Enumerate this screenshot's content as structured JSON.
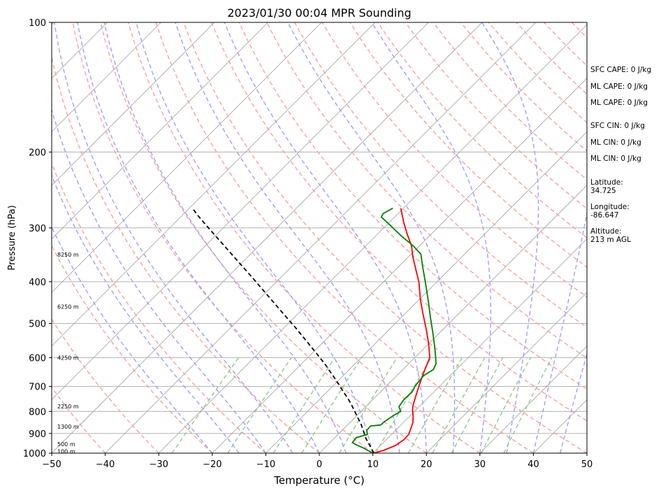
{
  "chart_data": {
    "type": "skew-t",
    "title": "2023/01/30 00:04 MPR Sounding",
    "xlabel": "Temperature (°C)",
    "ylabel": "Pressure (hPa)",
    "xlim": [
      -50,
      50
    ],
    "ylim": [
      1000,
      100
    ],
    "y_scale": "log",
    "x_ticks": [
      -50,
      -40,
      -30,
      -20,
      -10,
      0,
      10,
      20,
      30,
      40,
      50
    ],
    "x_tick_labels": [
      "−50",
      "−40",
      "−30",
      "−20",
      "−10",
      "0",
      "10",
      "20",
      "30",
      "40",
      "50"
    ],
    "y_ticks": [
      100,
      200,
      300,
      400,
      500,
      600,
      700,
      800,
      900,
      1000
    ],
    "y_tick_labels": [
      "100",
      "200",
      "300",
      "400",
      "500",
      "600",
      "700",
      "800",
      "900",
      "1000"
    ],
    "height_labels": [
      {
        "p": 990,
        "text": "100 m"
      },
      {
        "p": 953,
        "text": "500 m"
      },
      {
        "p": 868,
        "text": "1300 m"
      },
      {
        "p": 778,
        "text": "2250 m"
      },
      {
        "p": 600,
        "text": "4250 m"
      },
      {
        "p": 457,
        "text": "6250 m"
      },
      {
        "p": 346,
        "text": "8250 m"
      }
    ],
    "colors": {
      "temperature": "#ff0000",
      "dewpoint": "#008000",
      "parcel": "#000000",
      "isotherms": "#a0a0a0",
      "dry_adiabats": "#ff9e9e",
      "moist_adiabats": "#9e9eff",
      "mixing_ratio": "#8fc98f"
    },
    "series": [
      {
        "points": [
          [
            10.2,
            1000
          ],
          [
            11.5,
            985
          ],
          [
            12.8,
            960
          ],
          [
            13.3,
            930
          ],
          [
            13.2,
            905
          ],
          [
            12.6,
            880
          ],
          [
            11.8,
            850
          ],
          [
            10.6,
            820
          ],
          [
            9.4,
            795
          ],
          [
            8.6,
            775
          ],
          [
            7.8,
            750
          ],
          [
            6.8,
            720
          ],
          [
            5.8,
            690
          ],
          [
            4.8,
            660
          ],
          [
            3.8,
            630
          ],
          [
            2.8,
            600
          ],
          [
            0.2,
            560
          ],
          [
            -2.8,
            520
          ],
          [
            -6.2,
            480
          ],
          [
            -9.8,
            440
          ],
          [
            -13.4,
            400
          ],
          [
            -16.8,
            370
          ],
          [
            -19.2,
            350
          ],
          [
            -21.5,
            330
          ],
          [
            -24.5,
            310
          ],
          [
            -27.5,
            290
          ],
          [
            -30.5,
            270
          ]
        ]
      },
      {
        "points": [
          [
            10.0,
            1000
          ],
          [
            8.5,
            985
          ],
          [
            7.0,
            970
          ],
          [
            5.5,
            958
          ],
          [
            4.2,
            945
          ],
          [
            4.0,
            920
          ],
          [
            5.5,
            905
          ],
          [
            4.6,
            885
          ],
          [
            4.5,
            865
          ],
          [
            6.2,
            860
          ],
          [
            6.3,
            845
          ],
          [
            6.8,
            820
          ],
          [
            7.4,
            800
          ],
          [
            6.2,
            780
          ],
          [
            5.8,
            750
          ],
          [
            5.9,
            720
          ],
          [
            5.4,
            700
          ],
          [
            5.2,
            680
          ],
          [
            5.0,
            660
          ],
          [
            5.7,
            640
          ],
          [
            5.1,
            620
          ],
          [
            3.9,
            600
          ],
          [
            1.6,
            565
          ],
          [
            -1.3,
            525
          ],
          [
            -4.5,
            485
          ],
          [
            -7.9,
            445
          ],
          [
            -11.7,
            405
          ],
          [
            -15.4,
            370
          ],
          [
            -18.2,
            345
          ],
          [
            -21.2,
            330
          ],
          [
            -25.5,
            312
          ],
          [
            -29.5,
            295
          ],
          [
            -32.5,
            283
          ],
          [
            -32.8,
            278
          ],
          [
            -32.0,
            270
          ]
        ]
      },
      {
        "points": [
          [
            10.2,
            1000
          ],
          [
            8.0,
            960
          ],
          [
            6.0,
            925
          ],
          [
            4.2,
            890
          ],
          [
            2.3,
            855
          ],
          [
            0.1,
            820
          ],
          [
            -1.5,
            795
          ],
          [
            -3.3,
            768
          ],
          [
            -5.0,
            745
          ],
          [
            -7.0,
            720
          ],
          [
            -9.4,
            690
          ],
          [
            -12.0,
            660
          ],
          [
            -15.2,
            625
          ],
          [
            -18.8,
            590
          ],
          [
            -22.9,
            553
          ],
          [
            -27.4,
            515
          ],
          [
            -32.7,
            475
          ],
          [
            -38.7,
            433
          ],
          [
            -45.5,
            390
          ],
          [
            -53.0,
            348
          ],
          [
            -60.6,
            310
          ],
          [
            -64.3,
            293
          ],
          [
            -67.0,
            281
          ],
          [
            -69.2,
            271
          ]
        ]
      }
    ],
    "info_lines": [
      "SFC CAPE: 0 J/kg",
      "ML CAPE: 0 J/kg",
      "ML CAPE: 0 J/kg",
      "SFC CIN: 0 J/kg",
      "ML CIN: 0 J/kg",
      "ML CIN: 0 J/kg",
      "Latitude:\n34.725",
      "Longitude:\n-86.647",
      "Altitude:\n213 m AGL"
    ]
  }
}
